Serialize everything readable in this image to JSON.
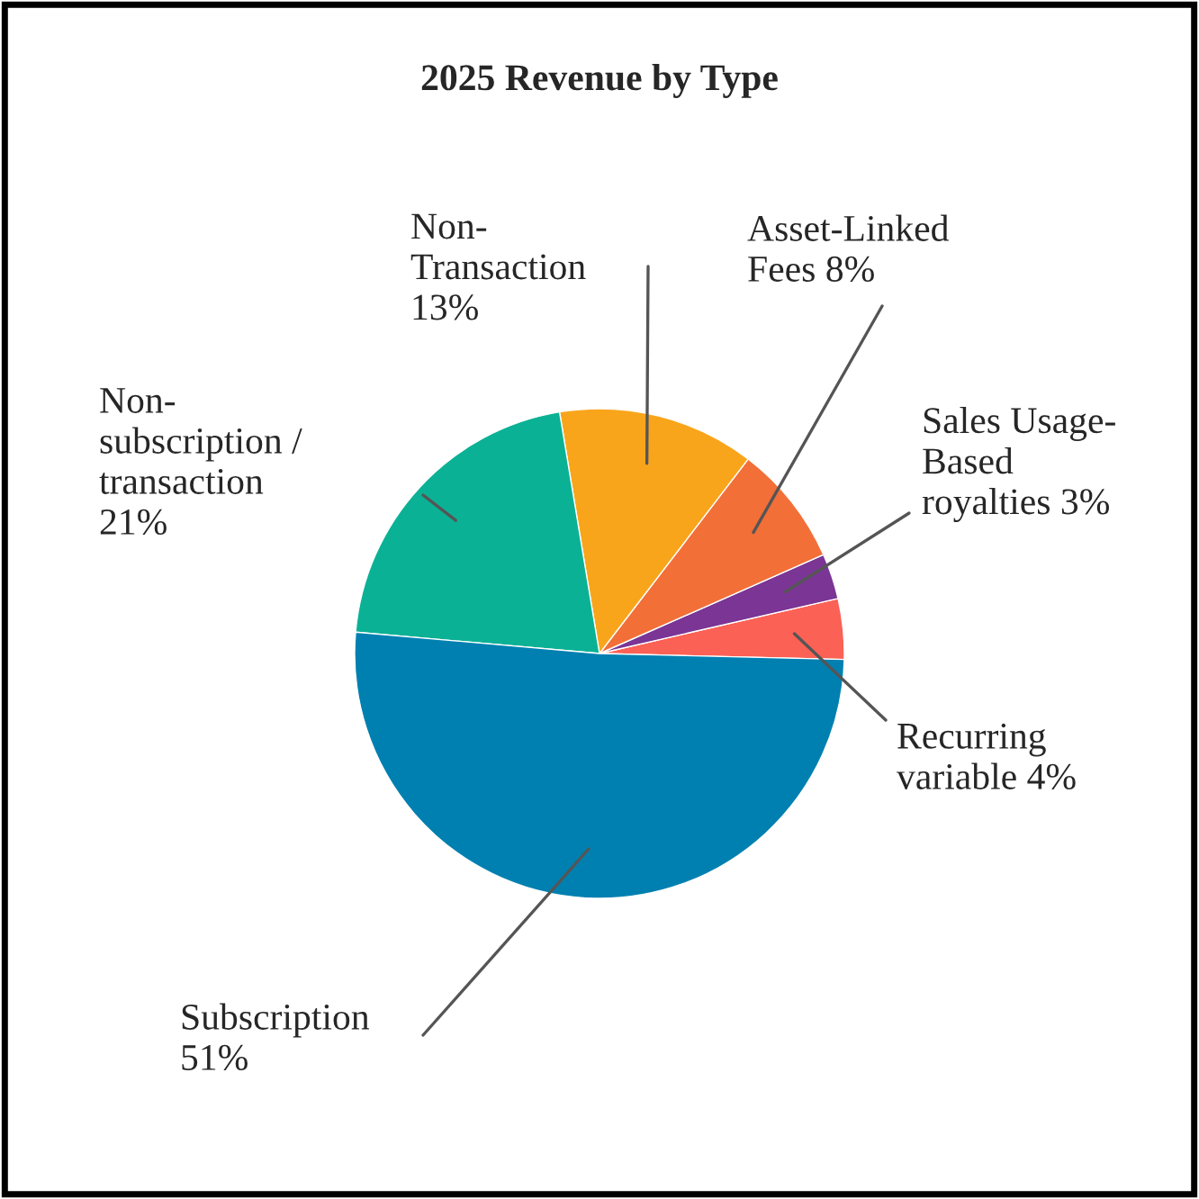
{
  "chart_data": {
    "type": "pie",
    "title": "2025 Revenue by Type",
    "categories": [
      "Recurring variable",
      "Sales Usage-Based royalties",
      "Asset-Linked Fees",
      "Non-Transaction",
      "Non-subscription / transaction",
      "Subscription"
    ],
    "values": [
      4,
      3,
      8,
      13,
      21,
      51
    ],
    "value_labels": [
      "4%",
      "3%",
      "8%",
      "13%",
      "21%",
      "51%"
    ],
    "colors": [
      "#fb6155",
      "#7a3595",
      "#f36f38",
      "#f9a51b",
      "#0bb195",
      "#0080b0"
    ]
  }
}
